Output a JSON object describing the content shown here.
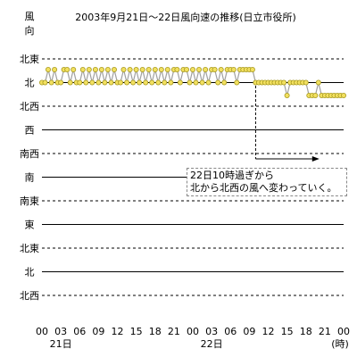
{
  "chart_data": {
    "type": "line",
    "title": "2003年9月21日～22日風向速の推移(日立市役所)",
    "y_axis_top_label": "風\n向",
    "direction_labels": [
      "北東",
      "北",
      "北西",
      "西",
      "南西",
      "南",
      "南東",
      "東",
      "北東",
      "北",
      "北西"
    ],
    "solid_gridline_labels": [
      "北",
      "西",
      "南",
      "東",
      "北"
    ],
    "x_ticks": [
      "00",
      "03",
      "06",
      "09",
      "12",
      "15",
      "18",
      "21",
      "00",
      "03",
      "06",
      "09",
      "12",
      "15",
      "18",
      "21",
      "00"
    ],
    "x_unit": "(時)",
    "day_labels": [
      {
        "text": "21日",
        "hour": 3
      },
      {
        "text": "22日",
        "hour": 27
      }
    ],
    "series": [
      {
        "values": [
          {
            "hour": 0.0,
            "dir": "北"
          },
          {
            "hour": 0.5,
            "dir": "北"
          },
          {
            "hour": 1.0,
            "dir": "北東"
          },
          {
            "hour": 1.5,
            "dir": "北"
          },
          {
            "hour": 2.0,
            "dir": "北東"
          },
          {
            "hour": 2.5,
            "dir": "北"
          },
          {
            "hour": 3.0,
            "dir": "北"
          },
          {
            "hour": 3.5,
            "dir": "北東"
          },
          {
            "hour": 4.0,
            "dir": "北東"
          },
          {
            "hour": 4.5,
            "dir": "北"
          },
          {
            "hour": 5.0,
            "dir": "北東"
          },
          {
            "hour": 5.5,
            "dir": "北"
          },
          {
            "hour": 6.0,
            "dir": "北"
          },
          {
            "hour": 6.5,
            "dir": "北東"
          },
          {
            "hour": 7.0,
            "dir": "北"
          },
          {
            "hour": 7.5,
            "dir": "北東"
          },
          {
            "hour": 8.0,
            "dir": "北"
          },
          {
            "hour": 8.5,
            "dir": "北東"
          },
          {
            "hour": 9.0,
            "dir": "北"
          },
          {
            "hour": 9.5,
            "dir": "北東"
          },
          {
            "hour": 10.0,
            "dir": "北"
          },
          {
            "hour": 10.5,
            "dir": "北東"
          },
          {
            "hour": 11.0,
            "dir": "北"
          },
          {
            "hour": 11.5,
            "dir": "北東"
          },
          {
            "hour": 12.0,
            "dir": "北"
          },
          {
            "hour": 12.5,
            "dir": "北"
          },
          {
            "hour": 13.0,
            "dir": "北東"
          },
          {
            "hour": 13.5,
            "dir": "北"
          },
          {
            "hour": 14.0,
            "dir": "北東"
          },
          {
            "hour": 14.5,
            "dir": "北"
          },
          {
            "hour": 15.0,
            "dir": "北東"
          },
          {
            "hour": 15.5,
            "dir": "北"
          },
          {
            "hour": 16.0,
            "dir": "北東"
          },
          {
            "hour": 16.5,
            "dir": "北"
          },
          {
            "hour": 17.0,
            "dir": "北東"
          },
          {
            "hour": 17.5,
            "dir": "北"
          },
          {
            "hour": 18.0,
            "dir": "北東"
          },
          {
            "hour": 18.5,
            "dir": "北"
          },
          {
            "hour": 19.0,
            "dir": "北東"
          },
          {
            "hour": 19.5,
            "dir": "北"
          },
          {
            "hour": 20.0,
            "dir": "北東"
          },
          {
            "hour": 20.5,
            "dir": "北"
          },
          {
            "hour": 21.0,
            "dir": "北東"
          },
          {
            "hour": 21.5,
            "dir": "北東"
          },
          {
            "hour": 22.0,
            "dir": "北"
          },
          {
            "hour": 22.5,
            "dir": "北東"
          },
          {
            "hour": 23.0,
            "dir": "北東"
          },
          {
            "hour": 23.5,
            "dir": "北"
          },
          {
            "hour": 24.0,
            "dir": "北東"
          },
          {
            "hour": 24.5,
            "dir": "北"
          },
          {
            "hour": 25.0,
            "dir": "北東"
          },
          {
            "hour": 25.5,
            "dir": "北"
          },
          {
            "hour": 26.0,
            "dir": "北東"
          },
          {
            "hour": 26.5,
            "dir": "北"
          },
          {
            "hour": 27.0,
            "dir": "北東"
          },
          {
            "hour": 27.5,
            "dir": "北東"
          },
          {
            "hour": 28.0,
            "dir": "北"
          },
          {
            "hour": 28.5,
            "dir": "北東"
          },
          {
            "hour": 29.0,
            "dir": "北"
          },
          {
            "hour": 29.5,
            "dir": "北東"
          },
          {
            "hour": 30.0,
            "dir": "北東"
          },
          {
            "hour": 30.5,
            "dir": "北東"
          },
          {
            "hour": 31.0,
            "dir": "北"
          },
          {
            "hour": 31.5,
            "dir": "北東"
          },
          {
            "hour": 32.0,
            "dir": "北東"
          },
          {
            "hour": 32.5,
            "dir": "北東"
          },
          {
            "hour": 33.0,
            "dir": "北東"
          },
          {
            "hour": 33.5,
            "dir": "北東"
          },
          {
            "hour": 34.0,
            "dir": "北"
          },
          {
            "hour": 34.5,
            "dir": "北"
          },
          {
            "hour": 35.0,
            "dir": "北"
          },
          {
            "hour": 35.5,
            "dir": "北"
          },
          {
            "hour": 36.0,
            "dir": "北"
          },
          {
            "hour": 36.5,
            "dir": "北"
          },
          {
            "hour": 37.0,
            "dir": "北"
          },
          {
            "hour": 37.5,
            "dir": "北"
          },
          {
            "hour": 38.0,
            "dir": "北"
          },
          {
            "hour": 38.5,
            "dir": "北"
          },
          {
            "hour": 39.0,
            "dir": "北西"
          },
          {
            "hour": 39.5,
            "dir": "北"
          },
          {
            "hour": 40.0,
            "dir": "北"
          },
          {
            "hour": 40.5,
            "dir": "北"
          },
          {
            "hour": 41.0,
            "dir": "北"
          },
          {
            "hour": 41.5,
            "dir": "北"
          },
          {
            "hour": 42.0,
            "dir": "北"
          },
          {
            "hour": 42.5,
            "dir": "北西"
          },
          {
            "hour": 43.0,
            "dir": "北西"
          },
          {
            "hour": 43.5,
            "dir": "北西"
          },
          {
            "hour": 44.0,
            "dir": "北"
          },
          {
            "hour": 44.5,
            "dir": "北西"
          },
          {
            "hour": 45.0,
            "dir": "北西"
          },
          {
            "hour": 45.5,
            "dir": "北西"
          },
          {
            "hour": 46.0,
            "dir": "北西"
          },
          {
            "hour": 46.5,
            "dir": "北西"
          },
          {
            "hour": 47.0,
            "dir": "北西"
          },
          {
            "hour": 47.5,
            "dir": "北西"
          },
          {
            "hour": 48.0,
            "dir": "北西"
          }
        ]
      }
    ],
    "annotation": {
      "lines": [
        "22日10時過ぎから",
        "北から北西の風へ変わっていく。"
      ],
      "from_hour": 34,
      "to_hour": 43
    },
    "colors": {
      "marker_fill": "#f2e060",
      "marker_stroke": "#a89a20",
      "line": "#a0a0a0",
      "grid_solid": "#000000",
      "grid_dashed": "#000000"
    }
  }
}
